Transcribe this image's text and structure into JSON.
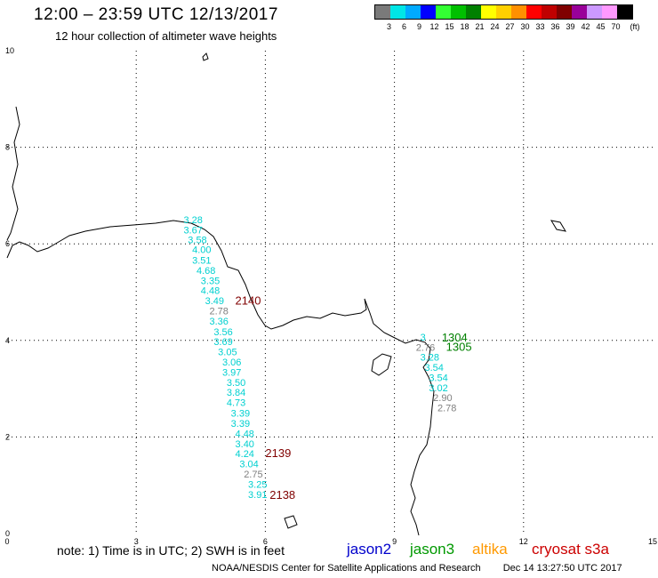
{
  "header": {
    "title": "12:00 – 23:59 UTC 12/13/2017",
    "subtitle": "12 hour collection of altimeter wave heights"
  },
  "legend": {
    "unit": "(ft)",
    "items": [
      {
        "label": "3",
        "color": "#7a7a7a"
      },
      {
        "label": "6",
        "color": "#00e6e6"
      },
      {
        "label": "9",
        "color": "#00aaff"
      },
      {
        "label": "12",
        "color": "#0000ff"
      },
      {
        "label": "15",
        "color": "#33ff33"
      },
      {
        "label": "18",
        "color": "#00c000"
      },
      {
        "label": "21",
        "color": "#008000"
      },
      {
        "label": "24",
        "color": "#ffff00"
      },
      {
        "label": "27",
        "color": "#ffd000"
      },
      {
        "label": "30",
        "color": "#ff9000"
      },
      {
        "label": "33",
        "color": "#ff0000"
      },
      {
        "label": "36",
        "color": "#c00000"
      },
      {
        "label": "39",
        "color": "#800000"
      },
      {
        "label": "42",
        "color": "#990099"
      },
      {
        "label": "45",
        "color": "#cc99ff"
      },
      {
        "label": "70",
        "color": "#ff99ff"
      },
      {
        "label": "",
        "color": "#000000"
      }
    ]
  },
  "axes": {
    "x_ticks": [
      "0",
      "3",
      "6",
      "9",
      "12",
      "15"
    ],
    "y_ticks": [
      "10",
      "8",
      "6",
      "4",
      "2",
      "0"
    ]
  },
  "track_labels": [
    {
      "text": "3.28",
      "x": 4.1,
      "y": 6.43,
      "color": "#00d0d0"
    },
    {
      "text": "3.67",
      "x": 4.1,
      "y": 6.22,
      "color": "#00d0d0"
    },
    {
      "text": "3.58",
      "x": 4.2,
      "y": 6.01,
      "color": "#00d0d0"
    },
    {
      "text": "4.00",
      "x": 4.3,
      "y": 5.81,
      "color": "#00d0d0"
    },
    {
      "text": "3.51",
      "x": 4.3,
      "y": 5.59,
      "color": "#00d0d0"
    },
    {
      "text": "4.68",
      "x": 4.4,
      "y": 5.38,
      "color": "#00d0d0"
    },
    {
      "text": "3.35",
      "x": 4.5,
      "y": 5.17,
      "color": "#00d0d0"
    },
    {
      "text": "4.48",
      "x": 4.5,
      "y": 4.96,
      "color": "#00d0d0"
    },
    {
      "text": "3.49",
      "x": 4.6,
      "y": 4.75,
      "color": "#00d0d0"
    },
    {
      "text": "2.78",
      "x": 4.7,
      "y": 4.54,
      "color": "#808080"
    },
    {
      "text": "3.36",
      "x": 4.7,
      "y": 4.33,
      "color": "#00d0d0"
    },
    {
      "text": "3.56",
      "x": 4.8,
      "y": 4.11,
      "color": "#00d0d0"
    },
    {
      "text": "3.69",
      "x": 4.8,
      "y": 3.9,
      "color": "#00d0d0"
    },
    {
      "text": "3.05",
      "x": 4.9,
      "y": 3.69,
      "color": "#00d0d0"
    },
    {
      "text": "3.06",
      "x": 5.0,
      "y": 3.48,
      "color": "#00d0d0"
    },
    {
      "text": "3.97",
      "x": 5.0,
      "y": 3.27,
      "color": "#00d0d0"
    },
    {
      "text": "3.50",
      "x": 5.1,
      "y": 3.06,
      "color": "#00d0d0"
    },
    {
      "text": "3.84",
      "x": 5.1,
      "y": 2.85,
      "color": "#00d0d0"
    },
    {
      "text": "4.73",
      "x": 5.1,
      "y": 2.64,
      "color": "#00d0d0"
    },
    {
      "text": "3.39",
      "x": 5.2,
      "y": 2.42,
      "color": "#00d0d0"
    },
    {
      "text": "3.39",
      "x": 5.2,
      "y": 2.21,
      "color": "#00d0d0"
    },
    {
      "text": "4.48",
      "x": 5.3,
      "y": 2.0,
      "color": "#00d0d0"
    },
    {
      "text": "3.40",
      "x": 5.3,
      "y": 1.79,
      "color": "#00d0d0"
    },
    {
      "text": "4.24",
      "x": 5.3,
      "y": 1.58,
      "color": "#00d0d0"
    },
    {
      "text": "3.04",
      "x": 5.4,
      "y": 1.37,
      "color": "#00d0d0"
    },
    {
      "text": "2.75",
      "x": 5.5,
      "y": 1.16,
      "color": "#808080"
    },
    {
      "text": "3.25",
      "x": 5.6,
      "y": 0.95,
      "color": "#00d0d0"
    },
    {
      "text": "3.91",
      "x": 5.6,
      "y": 0.74,
      "color": "#00d0d0"
    },
    {
      "text": "2140",
      "x": 5.3,
      "y": 4.74,
      "color": "#800000"
    },
    {
      "text": "2139",
      "x": 6.0,
      "y": 1.58,
      "color": "#800000"
    },
    {
      "text": "2138",
      "x": 6.1,
      "y": 0.72,
      "color": "#800000"
    },
    {
      "text": "3",
      "x": 9.6,
      "y": 4.0,
      "color": "#00d0d0"
    },
    {
      "text": "2.76",
      "x": 9.5,
      "y": 3.78,
      "color": "#808080"
    },
    {
      "text": "3.28",
      "x": 9.6,
      "y": 3.58,
      "color": "#00d0d0"
    },
    {
      "text": "3.54",
      "x": 9.7,
      "y": 3.37,
      "color": "#00d0d0"
    },
    {
      "text": "3.54",
      "x": 9.8,
      "y": 3.16,
      "color": "#00d0d0"
    },
    {
      "text": "3.02",
      "x": 9.8,
      "y": 2.95,
      "color": "#00d0d0"
    },
    {
      "text": "2.90",
      "x": 9.9,
      "y": 2.74,
      "color": "#808080"
    },
    {
      "text": "2.78",
      "x": 10.0,
      "y": 2.53,
      "color": "#808080"
    },
    {
      "text": "1304",
      "x": 10.1,
      "y": 3.98,
      "color": "#008000"
    },
    {
      "text": "1305",
      "x": 10.2,
      "y": 3.78,
      "color": "#008000"
    }
  ],
  "footer": {
    "note": "note:  1) Time is in UTC;  2) SWH is in feet",
    "satellites": [
      {
        "name": "jason2",
        "color": "#0000cc"
      },
      {
        "name": "jason3",
        "color": "#009900"
      },
      {
        "name": "altika",
        "color": "#ff9900"
      },
      {
        "name": "cryosat s3a",
        "color": "#cc0000"
      }
    ],
    "credit": "NOAA/NESDIS Center for Satellite Applications and Research",
    "timestamp": "Dec 14 13:27:50 UTC 2017"
  }
}
